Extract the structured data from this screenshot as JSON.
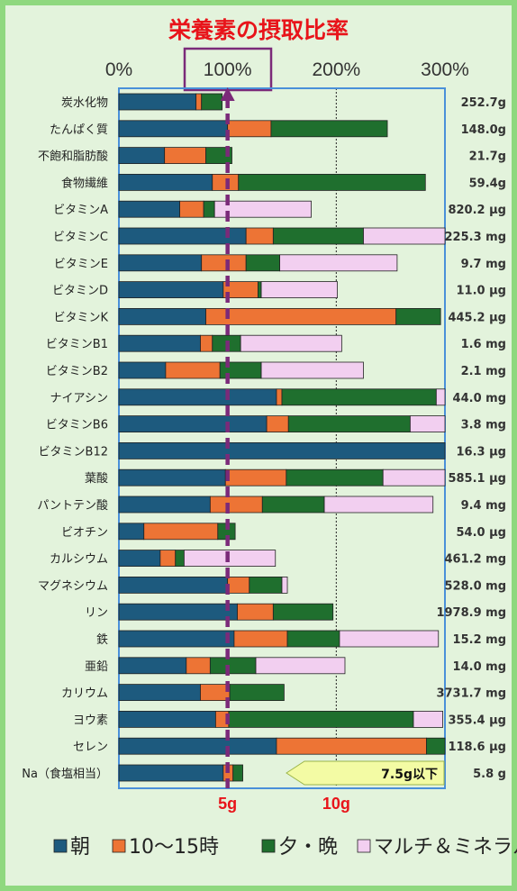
{
  "chart_data": {
    "type": "bar",
    "orientation": "horizontal",
    "stacked": true,
    "title": "栄養素の摂取比率",
    "xlim": [
      0,
      300
    ],
    "xticks": [
      "0%",
      "100%",
      "200%",
      "300%"
    ],
    "reference_line_value": 100,
    "categories": [
      "炭水化物",
      "たんぱく質",
      "不飽和脂肪酸",
      "食物繊維",
      "ビタミンA",
      "ビタミンC",
      "ビタミンE",
      "ビタミンD",
      "ビタミンK",
      "ビタミンB1",
      "ビタミンB2",
      "ナイアシン",
      "ビタミンB6",
      "ビタミンB12",
      "葉酸",
      "パントテン酸",
      "ビオチン",
      "カルシウム",
      "マグネシウム",
      "リン",
      "鉄",
      "亜鉛",
      "カリウム",
      "ヨウ素",
      "セレン",
      "Na（食塩相当）"
    ],
    "totals": [
      "252.7g",
      "148.0g",
      "21.7g",
      "59.4g",
      "820.2 μg",
      "225.3 mg",
      "9.7 mg",
      "11.0 μg",
      "445.2 μg",
      "1.6 mg",
      "2.1 mg",
      "44.0 mg",
      "3.8 mg",
      "16.3 μg",
      "585.1 μg",
      "9.4 mg",
      "54.0 μg",
      "461.2 mg",
      "528.0 mg",
      "1978.9 mg",
      "15.2 mg",
      "14.0 mg",
      "3731.7 mg",
      "355.4 μg",
      "118.6 μg",
      "5.8 g"
    ],
    "series": [
      {
        "name": "朝",
        "color": "#1d5a7e",
        "values": [
          71,
          100,
          42,
          86,
          56,
          117,
          76,
          96,
          80,
          75,
          43,
          145,
          136,
          300,
          98,
          84,
          23,
          38,
          100,
          109,
          106,
          62,
          75,
          89,
          145,
          96
        ]
      },
      {
        "name": "10～15時",
        "color": "#ed7435",
        "values": [
          5,
          40,
          38,
          24,
          22,
          25,
          41,
          32,
          175,
          11,
          50,
          5,
          20,
          0,
          56,
          48,
          68,
          14,
          20,
          33,
          49,
          22,
          27,
          12,
          138,
          9
        ]
      },
      {
        "name": "夕・晩",
        "color": "#1f6f2e",
        "values": [
          19,
          107,
          24,
          172,
          10,
          83,
          31,
          3,
          41,
          26,
          38,
          142,
          112,
          0,
          89,
          57,
          16,
          8,
          30,
          55,
          48,
          42,
          50,
          170,
          17,
          9
        ]
      },
      {
        "name": "マルチ＆ミネラル",
        "color": "#f2cff0",
        "values": [
          0,
          0,
          0,
          0,
          89,
          75,
          108,
          70,
          0,
          93,
          94,
          8,
          32,
          0,
          57,
          100,
          0,
          84,
          5,
          0,
          91,
          82,
          0,
          27,
          0,
          0
        ]
      }
    ],
    "bottom_labels": [
      "5g",
      "10g"
    ],
    "annotation": "7.5g以下"
  }
}
